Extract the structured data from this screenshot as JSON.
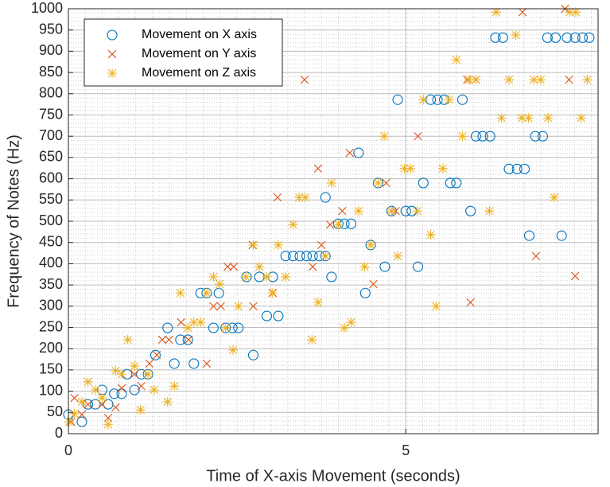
{
  "chart_data": {
    "type": "scatter",
    "xlabel": "Time of X-axis Movement (seconds)",
    "ylabel": "Frequency of Notes (Hz)",
    "xlim": [
      0,
      7.85
    ],
    "ylim": [
      0,
      1000
    ],
    "xticks": [
      0,
      5
    ],
    "yticks": [
      0,
      50,
      100,
      150,
      200,
      250,
      300,
      350,
      400,
      450,
      500,
      550,
      600,
      650,
      700,
      750,
      800,
      850,
      900,
      950,
      1000
    ],
    "grid": true,
    "minor_grid": true,
    "legend_position": "upper-left",
    "series": [
      {
        "name": "Movement on X axis",
        "color": "#0072BD",
        "marker": "o",
        "x": [
          0,
          0.2,
          0.29,
          0.4,
          0.5,
          0.59,
          0.68,
          0.79,
          0.87,
          0.98,
          1.08,
          1.18,
          1.29,
          1.47,
          1.57,
          1.66,
          1.77,
          1.86,
          1.96,
          2.05,
          2.15,
          2.23,
          2.33,
          2.43,
          2.52,
          2.64,
          2.74,
          2.83,
          2.94,
          3.03,
          3.11,
          3.22,
          3.33,
          3.43,
          3.53,
          3.62,
          3.72,
          3.81,
          3.81,
          3.9,
          4.0,
          4.09,
          4.19,
          4.3,
          4.4,
          4.48,
          4.59,
          4.69,
          4.79,
          4.88,
          5.0,
          5.09,
          5.18,
          5.26,
          5.37,
          5.47,
          5.57,
          5.66,
          5.75,
          5.84,
          5.96,
          6.04,
          6.14,
          6.25,
          6.33,
          6.44,
          6.53,
          6.65,
          6.76,
          6.83,
          6.92,
          7.03,
          7.1,
          7.22,
          7.31,
          7.39,
          7.51,
          7.62,
          7.72
        ],
        "values": [
          45,
          28,
          69,
          69,
          103,
          69,
          94,
          94,
          140,
          103,
          140,
          140,
          185,
          249,
          165,
          221,
          221,
          165,
          331,
          331,
          249,
          331,
          249,
          249,
          249,
          369,
          185,
          369,
          277,
          369,
          277,
          418,
          418,
          418,
          418,
          418,
          418,
          418,
          556,
          369,
          494,
          494,
          494,
          661,
          331,
          444,
          590,
          393,
          524,
          786,
          524,
          524,
          393,
          590,
          786,
          786,
          786,
          590,
          590,
          786,
          524,
          700,
          700,
          700,
          932,
          932,
          623,
          623,
          623,
          466,
          700,
          700,
          932,
          932,
          466,
          932,
          932,
          932,
          932
        ]
      },
      {
        "name": "Movement on Y axis",
        "color": "#D95319",
        "marker": "x",
        "x": [
          0.04,
          0.09,
          0.2,
          0.29,
          0.5,
          0.59,
          0.7,
          0.79,
          0.98,
          1.08,
          1.2,
          1.31,
          1.39,
          1.49,
          1.67,
          1.78,
          2.05,
          2.15,
          2.26,
          2.36,
          2.45,
          2.73,
          2.74,
          3.03,
          3.1,
          3.5,
          3.62,
          3.7,
          3.75,
          3.88,
          4.06,
          4.17,
          4.52,
          4.71,
          4.85,
          5.18,
          5.91,
          5.96,
          6.04,
          6.73,
          6.93,
          7.36,
          7.42,
          7.51
        ],
        "values": [
          28,
          84,
          45,
          69,
          69,
          37,
          62,
          107,
          140,
          112,
          165,
          185,
          221,
          221,
          262,
          221,
          165,
          300,
          300,
          393,
          393,
          444,
          300,
          331,
          556,
          833,
          393,
          624,
          444,
          492,
          524,
          661,
          352,
          590,
          524,
          700,
          833,
          309,
          833,
          992,
          418,
          1000,
          833,
          371
        ]
      },
      {
        "name": "Movement on Z axis",
        "color": "#EDB120",
        "marker": "*",
        "x": [
          0.01,
          0.09,
          0.2,
          0.29,
          0.4,
          0.5,
          0.59,
          0.7,
          0.79,
          0.88,
          0.98,
          1.07,
          1.18,
          1.27,
          1.47,
          1.57,
          1.66,
          1.77,
          1.86,
          1.96,
          2.05,
          2.15,
          2.24,
          2.33,
          2.44,
          2.52,
          2.63,
          2.74,
          2.83,
          2.94,
          3.02,
          3.11,
          3.22,
          3.33,
          3.42,
          3.51,
          3.61,
          3.7,
          3.81,
          3.9,
          4.0,
          4.09,
          4.19,
          4.3,
          4.39,
          4.48,
          4.59,
          4.68,
          4.79,
          4.88,
          4.98,
          5.07,
          5.17,
          5.26,
          5.37,
          5.45,
          5.55,
          5.64,
          5.75,
          5.84,
          5.94,
          6.04,
          6.24,
          6.34,
          6.42,
          6.53,
          6.63,
          6.72,
          6.82,
          6.9,
          7.0,
          7.11,
          7.2,
          7.43,
          7.52,
          7.6,
          7.69
        ],
        "values": [
          28,
          47,
          75,
          122,
          103,
          84,
          22,
          148,
          140,
          221,
          159,
          56,
          140,
          103,
          75,
          112,
          331,
          249,
          262,
          262,
          331,
          369,
          352,
          249,
          197,
          300,
          369,
          444,
          393,
          369,
          331,
          444,
          369,
          492,
          556,
          556,
          221,
          309,
          418,
          590,
          492,
          249,
          262,
          524,
          393,
          444,
          590,
          700,
          524,
          418,
          624,
          624,
          524,
          786,
          468,
          300,
          624,
          786,
          880,
          700,
          833,
          833,
          524,
          992,
          743,
          833,
          938,
          743,
          743,
          833,
          833,
          743,
          556,
          992,
          992,
          743,
          833
        ]
      }
    ]
  }
}
